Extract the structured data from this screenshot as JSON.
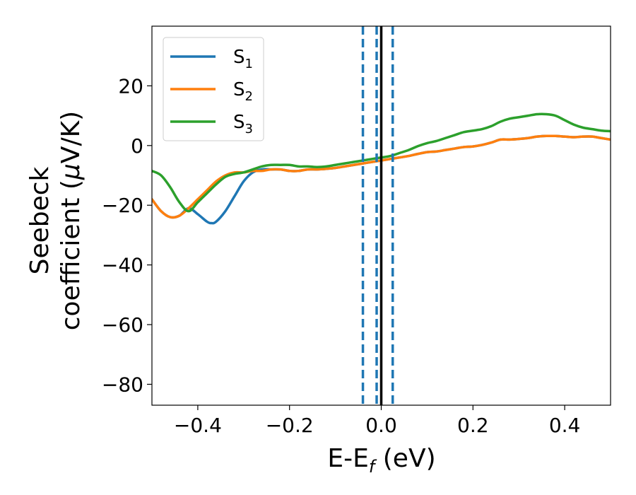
{
  "chart_data": {
    "type": "line",
    "title": "",
    "xlabel": {
      "main": "E-E",
      "sub": "f",
      "unit": " (eV)"
    },
    "ylabel": {
      "line1": "Seebeck",
      "line2_pre": "coefficient  (",
      "mu": "μ",
      "line2_post": "V/K)"
    },
    "xlim": [
      -0.5,
      0.5
    ],
    "ylim": [
      -87,
      40
    ],
    "xticks": [
      -0.4,
      -0.2,
      0.0,
      0.2,
      0.4
    ],
    "xtick_labels": [
      "−0.4",
      "−0.2",
      "0.0",
      "0.2",
      "0.4"
    ],
    "yticks": [
      -80,
      -60,
      -40,
      -20,
      0,
      20
    ],
    "ytick_labels": [
      "−80",
      "−60",
      "−40",
      "−20",
      "0",
      "20"
    ],
    "legend_position": "top-left",
    "colors": {
      "s1": "#1f77b4",
      "s2": "#ff7f0e",
      "s3": "#2ca02c",
      "fermi": "#000000",
      "dashed": "#1f77b4"
    },
    "vertical_lines": {
      "solid": [
        0.0
      ],
      "dashed": [
        -0.04,
        -0.01,
        0.025
      ]
    },
    "series": [
      {
        "name": "S",
        "sub": "1",
        "color": "#1f77b4",
        "x": [
          -0.5,
          -0.48,
          -0.46,
          -0.44,
          -0.42,
          -0.4,
          -0.38,
          -0.37,
          -0.36,
          -0.34,
          -0.32,
          -0.3,
          -0.28,
          -0.26,
          -0.24,
          -0.22,
          -0.2,
          -0.18,
          -0.16,
          -0.14,
          -0.12,
          -0.1,
          -0.08,
          -0.06,
          -0.04,
          -0.02,
          0.0,
          0.02,
          0.04,
          0.06,
          0.08,
          0.1,
          0.12,
          0.14,
          0.16,
          0.18,
          0.2,
          0.22,
          0.24,
          0.26,
          0.28,
          0.3,
          0.32,
          0.34,
          0.36,
          0.38,
          0.4,
          0.42,
          0.44,
          0.46,
          0.48,
          0.5
        ],
        "y": [
          -18,
          -22,
          -24,
          -23.5,
          -21,
          -23,
          -25.5,
          -26,
          -25.5,
          -22,
          -17,
          -12,
          -9,
          -8,
          -8,
          -8,
          -8.5,
          -8.5,
          -8,
          -8,
          -7.8,
          -7.5,
          -7,
          -6.5,
          -6,
          -5.5,
          -5,
          -4.5,
          -4,
          -3.5,
          -2.8,
          -2.2,
          -2,
          -1.5,
          -1,
          -0.5,
          -0.3,
          0.2,
          1,
          2,
          2,
          2.2,
          2.5,
          3,
          3.2,
          3.2,
          3,
          2.8,
          3,
          3,
          2.5,
          2
        ]
      },
      {
        "name": "S",
        "sub": "2",
        "color": "#ff7f0e",
        "x": [
          -0.5,
          -0.48,
          -0.46,
          -0.44,
          -0.42,
          -0.4,
          -0.38,
          -0.36,
          -0.34,
          -0.32,
          -0.3,
          -0.28,
          -0.26,
          -0.24,
          -0.22,
          -0.2,
          -0.18,
          -0.16,
          -0.14,
          -0.12,
          -0.1,
          -0.08,
          -0.06,
          -0.04,
          -0.02,
          0.0,
          0.02,
          0.04,
          0.06,
          0.08,
          0.1,
          0.12,
          0.14,
          0.16,
          0.18,
          0.2,
          0.22,
          0.24,
          0.26,
          0.28,
          0.3,
          0.32,
          0.34,
          0.36,
          0.38,
          0.4,
          0.42,
          0.44,
          0.46,
          0.48,
          0.5
        ],
        "y": [
          -18,
          -22,
          -24,
          -23.5,
          -21,
          -18,
          -15,
          -12,
          -10,
          -9,
          -9,
          -8.5,
          -8.5,
          -8,
          -8,
          -8.5,
          -8.5,
          -8,
          -8,
          -7.8,
          -7.5,
          -7,
          -6.5,
          -6,
          -5.5,
          -5,
          -4.5,
          -4,
          -3.5,
          -2.8,
          -2.2,
          -2,
          -1.5,
          -1,
          -0.5,
          -0.3,
          0.2,
          1,
          2,
          2,
          2.2,
          2.5,
          3,
          3.2,
          3.2,
          3,
          2.8,
          3,
          3,
          2.5,
          2
        ]
      },
      {
        "name": "S",
        "sub": "3",
        "color": "#2ca02c",
        "x": [
          -0.5,
          -0.48,
          -0.46,
          -0.44,
          -0.42,
          -0.4,
          -0.38,
          -0.36,
          -0.34,
          -0.32,
          -0.3,
          -0.28,
          -0.26,
          -0.24,
          -0.22,
          -0.2,
          -0.18,
          -0.16,
          -0.14,
          -0.12,
          -0.1,
          -0.08,
          -0.06,
          -0.04,
          -0.02,
          0.0,
          0.02,
          0.04,
          0.06,
          0.08,
          0.1,
          0.12,
          0.14,
          0.16,
          0.18,
          0.2,
          0.22,
          0.24,
          0.26,
          0.28,
          0.3,
          0.32,
          0.34,
          0.36,
          0.38,
          0.4,
          0.42,
          0.44,
          0.46,
          0.48,
          0.5
        ],
        "y": [
          -8.5,
          -10,
          -14,
          -19,
          -22,
          -19,
          -16,
          -13,
          -10.5,
          -9.5,
          -9,
          -8,
          -7,
          -6.5,
          -6.5,
          -6.5,
          -7,
          -7,
          -7.2,
          -7,
          -6.5,
          -6,
          -5.5,
          -5,
          -4.5,
          -4,
          -3.5,
          -2.5,
          -1.5,
          -0.2,
          0.8,
          1.5,
          2.5,
          3.5,
          4.5,
          5,
          5.5,
          6.5,
          8,
          9,
          9.5,
          10,
          10.5,
          10.5,
          10,
          8.5,
          7,
          6,
          5.5,
          5,
          4.8
        ]
      }
    ]
  }
}
